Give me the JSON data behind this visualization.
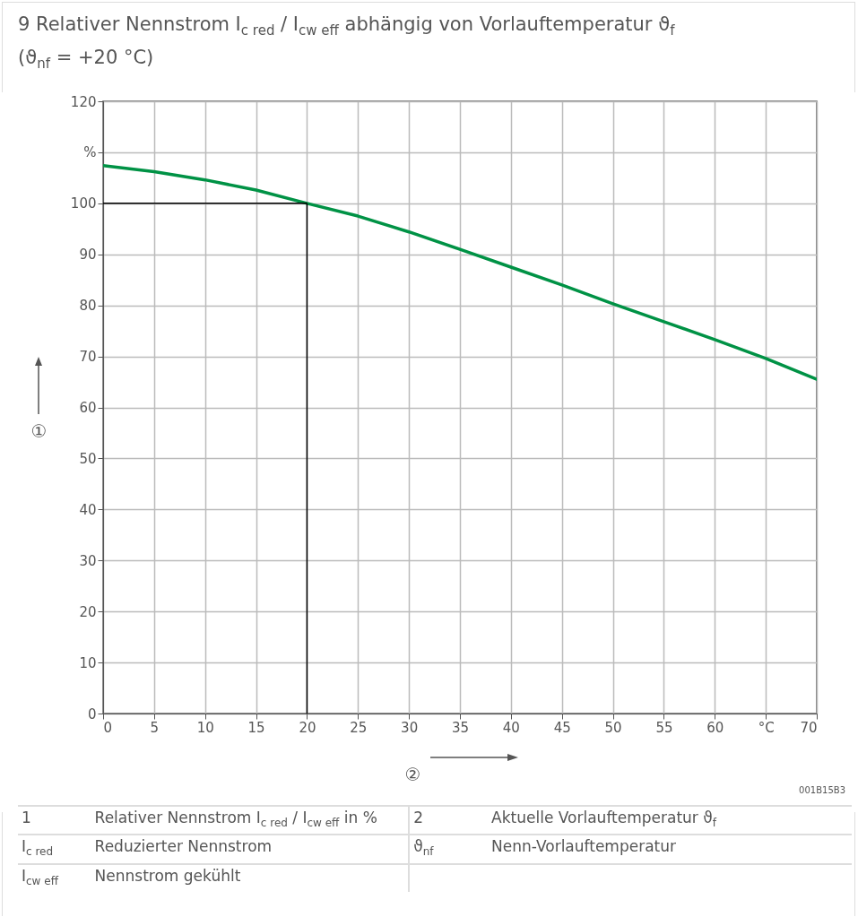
{
  "chart_data": {
    "type": "line",
    "title": "9  Relativer Nennstrom I$_{c red}$ / I$_{cw eff}$ abhängig von Vorlauftemperatur ϑ$_{f}$",
    "subtitle": "(ϑ$_{nf}$ = +20 °C)",
    "xlabel": "②",
    "ylabel": "①",
    "x": [
      0,
      5,
      10,
      15,
      20,
      25,
      30,
      35,
      40,
      45,
      50,
      55,
      60,
      65,
      70
    ],
    "series": [
      {
        "color": "#009245",
        "values": [
          107.4,
          106.2,
          104.6,
          102.6,
          100,
          97.5,
          94.4,
          91.0,
          87.5,
          84.0,
          80.3,
          76.8,
          73.3,
          69.6,
          65.5
        ]
      }
    ],
    "xlim": [
      0,
      70
    ],
    "xticks": [
      0,
      5,
      10,
      15,
      20,
      25,
      30,
      35,
      40,
      45,
      50,
      55,
      60,
      {
        "value": 65,
        "label": "°C"
      },
      70
    ],
    "ylim": [
      0,
      120
    ],
    "yticks": [
      0,
      10,
      20,
      30,
      40,
      50,
      60,
      70,
      80,
      90,
      100,
      {
        "value": 110,
        "label": "%"
      },
      120
    ],
    "grid": true,
    "marker": "none",
    "line_style": "solid",
    "ref_lines": [
      {
        "axis": "y",
        "value": 100,
        "color": "#000000"
      },
      {
        "axis": "x",
        "value": 20,
        "color": "#000000"
      }
    ],
    "annotations": [
      "001B15B3",
      "1",
      "Relativer Nennstrom I$_{c red}$ / I$_{cw eff}$ in %",
      "2",
      "Aktuelle Vorlauftemperatur ϑ$_{f}$",
      "I$_{c red}$",
      "Reduzierter Nennstrom",
      "ϑ$_{nf}$",
      "Nenn-Vorlauftemperatur",
      "I$_{cw eff}$",
      "Nennstrom gekühlt"
    ]
  }
}
